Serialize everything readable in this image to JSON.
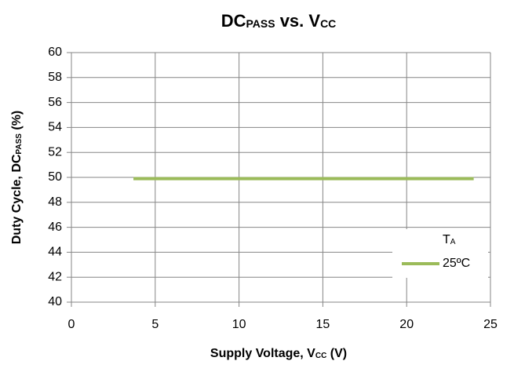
{
  "chart_data": {
    "type": "line",
    "title": [
      {
        "text": "DC"
      },
      {
        "text": "PASS",
        "sub": true
      },
      {
        "text": " vs. V"
      },
      {
        "text": "CC",
        "sub": true
      }
    ],
    "x_label": [
      {
        "text": "Supply Voltage, V"
      },
      {
        "text": "CC",
        "sub": true
      },
      {
        "text": " (V)"
      }
    ],
    "y_label": [
      {
        "text": "Duty Cycle, DC"
      },
      {
        "text": "PASS",
        "sub": true
      },
      {
        "text": " (%)"
      }
    ],
    "legend_title": [
      {
        "text": "T"
      },
      {
        "text": "A",
        "sub": true
      }
    ],
    "x": [
      3.7,
      24
    ],
    "series": [
      {
        "name": "25ºC",
        "color": "#9bbb59",
        "values": [
          49.9,
          49.9
        ]
      }
    ],
    "xlim": [
      0,
      25
    ],
    "xticks": [
      0,
      5,
      10,
      15,
      20,
      25
    ],
    "ylim": [
      40,
      60
    ],
    "yticks": [
      40,
      42,
      44,
      46,
      48,
      50,
      52,
      54,
      56,
      58,
      60
    ],
    "grid": true,
    "legend": "lower right"
  }
}
